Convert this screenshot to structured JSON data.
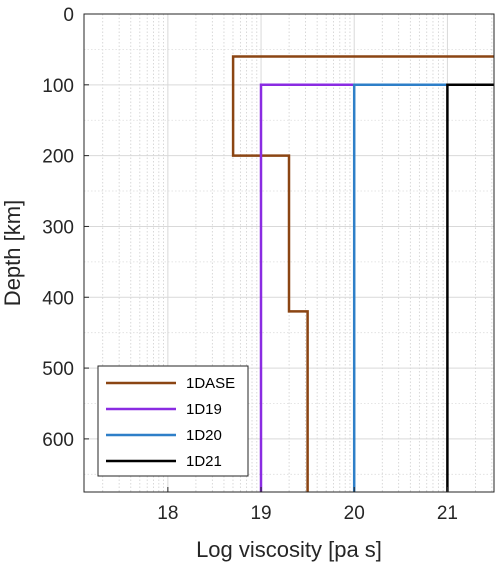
{
  "chart_data": {
    "type": "line",
    "title": "",
    "xlabel": "Log viscosity [pa s]",
    "ylabel": "Depth [km]",
    "xlim": [
      17.1,
      21.5
    ],
    "ylim": [
      0,
      675
    ],
    "y_reversed": true,
    "x_ticks": [
      18,
      19,
      20,
      21
    ],
    "y_ticks": [
      0,
      100,
      200,
      300,
      400,
      500,
      600
    ],
    "grid": true,
    "legend_position": "bottom-left",
    "series": [
      {
        "name": "1DASE",
        "color": "#8B4513",
        "points": [
          [
            21.5,
            60
          ],
          [
            18.7,
            60
          ],
          [
            18.7,
            200
          ],
          [
            19.3,
            200
          ],
          [
            19.3,
            420
          ],
          [
            19.5,
            420
          ],
          [
            19.5,
            675
          ]
        ]
      },
      {
        "name": "1D19",
        "color": "#8A2BE2",
        "points": [
          [
            21.5,
            100
          ],
          [
            19.0,
            100
          ],
          [
            19.0,
            675
          ]
        ]
      },
      {
        "name": "1D20",
        "color": "#2E7FC8",
        "points": [
          [
            21.5,
            100
          ],
          [
            20.0,
            100
          ],
          [
            20.0,
            675
          ]
        ]
      },
      {
        "name": "1D21",
        "color": "#000000",
        "points": [
          [
            21.5,
            100
          ],
          [
            21.0,
            100
          ],
          [
            21.0,
            675
          ]
        ]
      }
    ]
  }
}
